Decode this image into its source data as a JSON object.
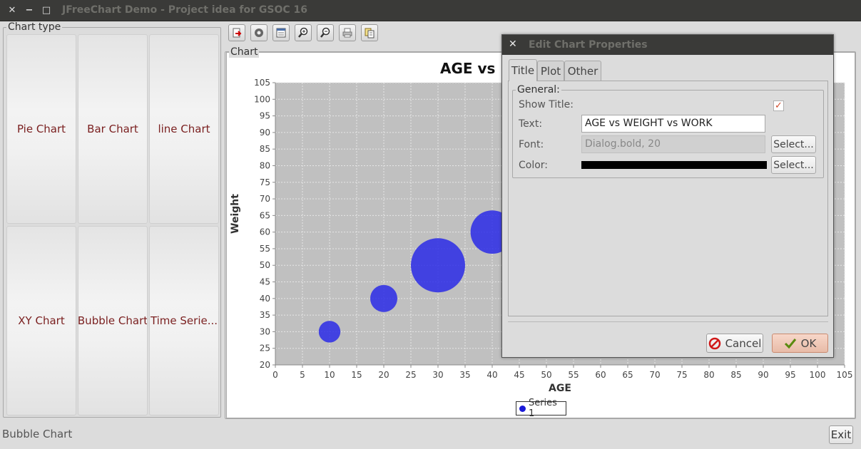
{
  "window": {
    "title": "JFreeChart Demo - Project idea for GSOC 16",
    "close_glyph": "✕",
    "minimize_glyph": "−",
    "maximize_glyph": "□"
  },
  "chart_type_panel": {
    "label": "Chart type",
    "tiles": [
      {
        "label": "Pie Chart"
      },
      {
        "label": "Bar Chart"
      },
      {
        "label": "line Chart"
      },
      {
        "label": "XY Chart"
      },
      {
        "label": "Bubble Chart"
      },
      {
        "label": "Time Serie..."
      }
    ]
  },
  "toolbar": {
    "icons": [
      "export-icon",
      "settings-icon",
      "properties-icon",
      "zoom-in-icon",
      "zoom-out-icon",
      "print-icon",
      "copy-icon"
    ]
  },
  "chart_panel": {
    "label": "Chart"
  },
  "chart_data": {
    "type": "scatter",
    "title": "AGE vs",
    "xlabel": "AGE",
    "ylabel": "Weight",
    "xlim": [
      0,
      105
    ],
    "ylim": [
      20,
      105
    ],
    "xticks": [
      0,
      5,
      10,
      15,
      20,
      25,
      30,
      35,
      40,
      45,
      50,
      55,
      60,
      65,
      70,
      75,
      80,
      85,
      90,
      95,
      100,
      105
    ],
    "yticks": [
      20,
      25,
      30,
      35,
      40,
      45,
      50,
      55,
      60,
      65,
      70,
      75,
      80,
      85,
      90,
      95,
      100,
      105
    ],
    "grid": true,
    "legend": "bottom",
    "series": [
      {
        "name": "Series 1",
        "color": "#2020e8",
        "points": [
          {
            "x": 10,
            "y": 30,
            "z": 2
          },
          {
            "x": 20,
            "y": 40,
            "z": 2.5
          },
          {
            "x": 30,
            "y": 50,
            "z": 5
          },
          {
            "x": 40,
            "y": 60,
            "z": 4
          }
        ]
      }
    ]
  },
  "status_bar": {
    "text": "Bubble Chart",
    "exit_label": "Exit"
  },
  "dialog": {
    "title": "Edit Chart Properties",
    "close_glyph": "✕",
    "tabs": [
      "Title",
      "Plot",
      "Other"
    ],
    "active_tab": "Title",
    "group_label": "General:",
    "show_title_label": "Show Title:",
    "show_title_checked": "✓",
    "text_label": "Text:",
    "text_value": "AGE vs WEIGHT vs WORK",
    "font_label": "Font:",
    "font_value": "Dialog.bold, 20",
    "color_label": "Color:",
    "title_color": "#000000",
    "select_label": "Select...",
    "cancel_label": "Cancel",
    "ok_label": "OK"
  }
}
